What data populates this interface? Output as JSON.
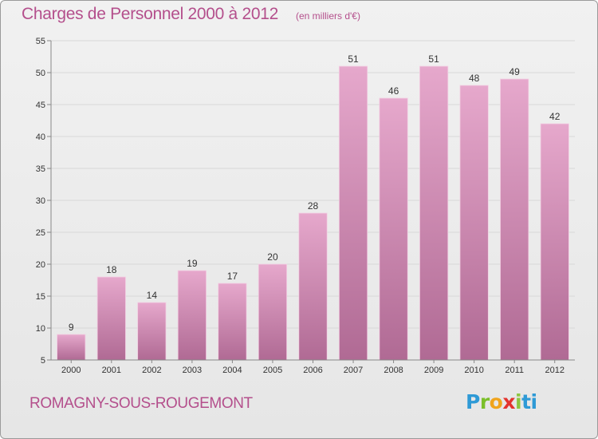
{
  "header": {
    "title": "Charges de Personnel 2000 à 2012",
    "subtitle": "(en milliers d'€)"
  },
  "footer": {
    "commune": "ROMAGNY-SOUS-ROUGEMONT",
    "logo_text": "Proxiti"
  },
  "colors": {
    "bar_light": "#e6a8cc",
    "bar_dark": "#b06a94",
    "title": "#b44f8c",
    "grid": "#d8d8d8",
    "axis": "#888888"
  },
  "chart_data": {
    "type": "bar",
    "title": "Charges de Personnel 2000 à 2012",
    "subtitle": "(en milliers d'€)",
    "categories": [
      "2000",
      "2001",
      "2002",
      "2003",
      "2004",
      "2005",
      "2006",
      "2007",
      "2008",
      "2009",
      "2010",
      "2011",
      "2012"
    ],
    "values": [
      9,
      18,
      14,
      19,
      17,
      20,
      28,
      51,
      46,
      51,
      48,
      49,
      42
    ],
    "ylim": [
      5,
      55
    ],
    "yticks": [
      5,
      10,
      15,
      20,
      25,
      30,
      35,
      40,
      45,
      50,
      55
    ],
    "grid": true,
    "data_labels": true
  }
}
